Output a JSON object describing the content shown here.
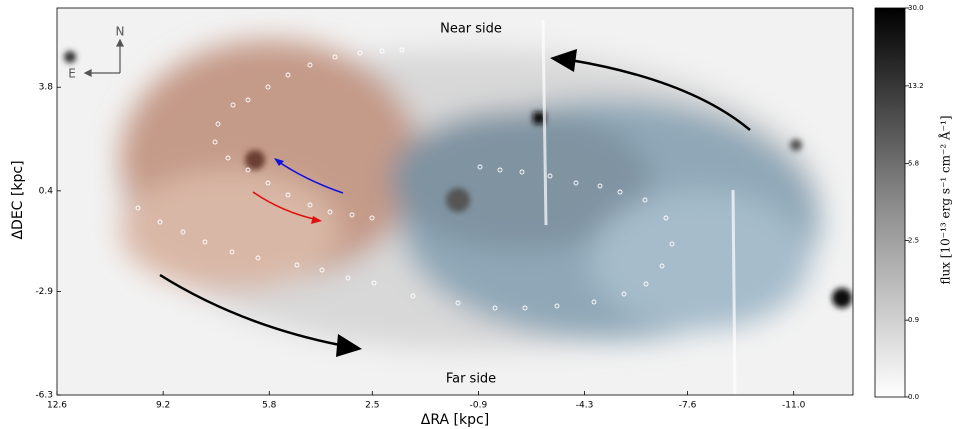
{
  "chart_data": {
    "type": "image",
    "x_label": "ΔRA [kpc]",
    "y_label": "ΔDEC [kpc]",
    "xlim": [
      12.6,
      -12.9
    ],
    "xticks": [
      12.6,
      9.2,
      5.8,
      2.5,
      -0.9,
      -4.3,
      -7.6,
      {
        "value": -11.0,
        "label": "-11.0"
      }
    ],
    "ylim": [
      -6.3,
      6.4
    ],
    "yticks": [
      -6.3,
      -2.9,
      0.4,
      3.8
    ],
    "annotations": [
      "Near side",
      "Far side"
    ],
    "compass": [
      "N",
      "E"
    ],
    "colorbar": {
      "label": "flux [10⁻¹³ erg s⁻¹ cm⁻² Å⁻¹]",
      "lim": [
        0,
        30
      ],
      "scale": "asinh",
      "ticks": [
        {
          "value": 0,
          "label": "0.0"
        },
        0.9,
        2.5,
        5.8,
        13.2,
        {
          "value": 30,
          "label": "30.0"
        }
      ],
      "colors": [
        "#ffffff",
        "#000000"
      ]
    }
  }
}
